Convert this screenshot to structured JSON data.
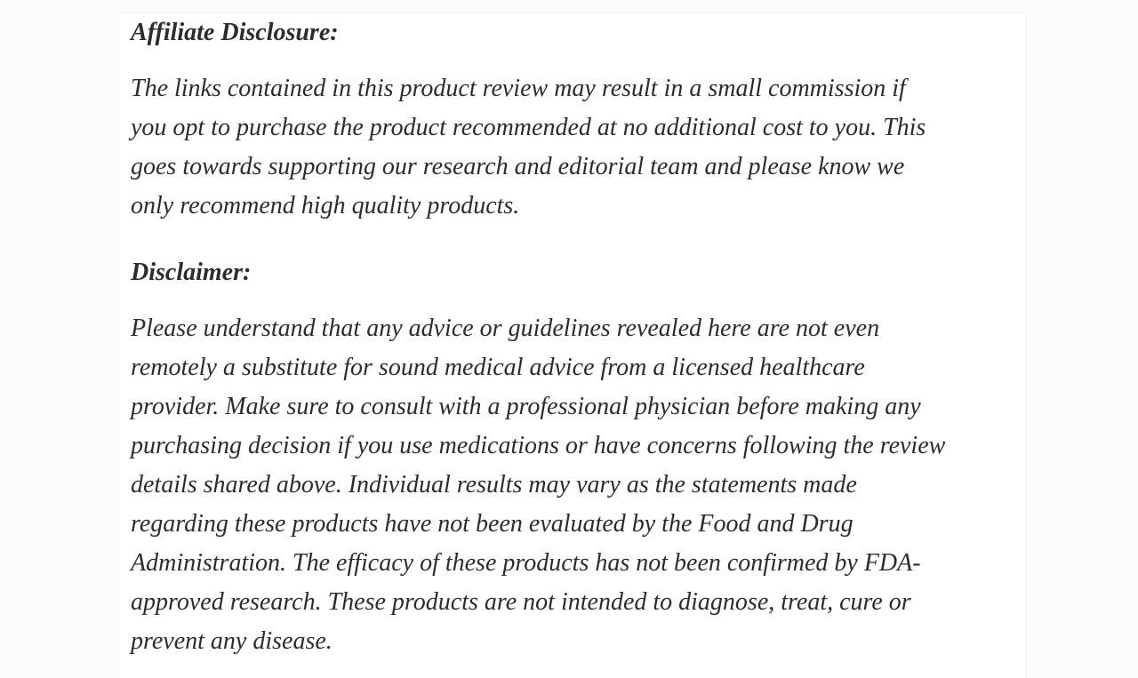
{
  "page": {
    "background_color": "#fcfcfc",
    "card_background_color": "#ffffff",
    "text_color": "#2c2c2c",
    "card_edge_color": "#f0f0f0"
  },
  "article": {
    "sections": [
      {
        "id": "affiliate-disclosure",
        "heading": "Affiliate Disclosure:",
        "lines": [
          "The links contained in this product review may result in a small commission if",
          "you opt to purchase the product recommended at no additional cost to you. This",
          "goes towards supporting our research and editorial team and please know we",
          "only recommend high quality products."
        ]
      },
      {
        "id": "disclaimer",
        "heading": "Disclaimer:",
        "lines": [
          "Please understand that any advice or guidelines revealed here are not even",
          "remotely a substitute for sound medical advice from a licensed healthcare",
          "provider. Make sure to consult with a professional physician before making any",
          "purchasing decision if you use medications or have concerns following the review",
          "details shared above. Individual results may vary as the statements made",
          "regarding these products have not been evaluated by the Food and Drug",
          "Administration. The efficacy of these products has not been confirmed by FDA-",
          "approved research. These products are not intended to diagnose, treat, cure or",
          "prevent any disease."
        ]
      }
    ]
  }
}
